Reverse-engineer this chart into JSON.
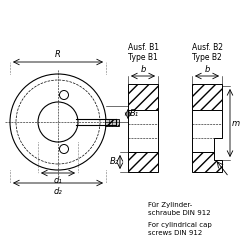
{
  "bg_color": "#ffffff",
  "line_color": "#000000",
  "title_b1": "Ausf. B1\nType B1",
  "title_b2": "Ausf. B2\nType B2",
  "label_R": "R",
  "label_d1": "d₁",
  "label_d2": "d₂",
  "label_B1": "B₁",
  "label_B2": "B₂",
  "label_b": "b",
  "label_m": "m",
  "note_de": "Für Zylinder-\nschraube DIN 912",
  "note_en": "For cylindrical cap\nscrews DIN 912",
  "font_size_label": 6,
  "font_size_title": 5.5,
  "font_size_note": 5
}
